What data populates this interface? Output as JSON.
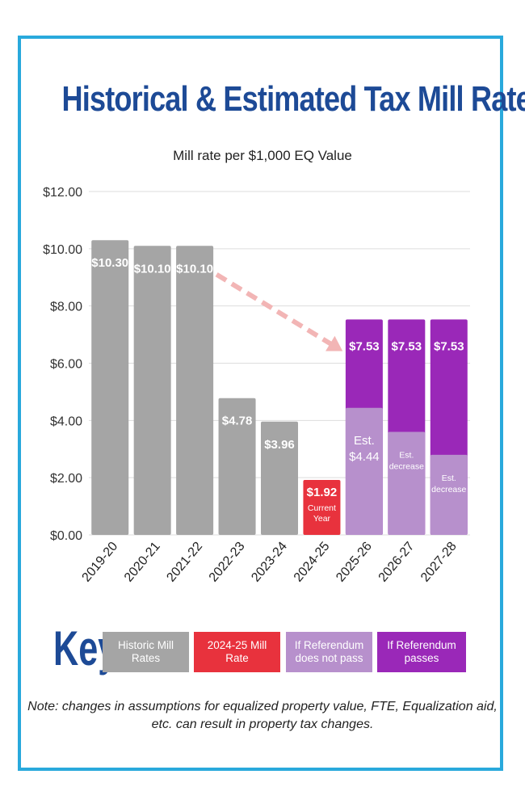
{
  "title": "Historical & Estimated Tax Mill Rate",
  "subtitle": "Mill rate per $1,000 EQ Value",
  "colors": {
    "historic": "#a5a5a5",
    "current": "#e8323d",
    "no_pass": "#b790cc",
    "passes": "#9a28b8",
    "frame": "#29a9dc",
    "title": "#1d4a96",
    "arrow": "#f2b5b5"
  },
  "chart_data": {
    "type": "bar",
    "title": "Historical & Estimated Tax Mill Rate",
    "ylabel": "Mill rate per $1,000 EQ Value",
    "xlabel": "",
    "ylim": [
      0,
      12
    ],
    "yticks": [
      {
        "value": 0,
        "label": "$0.00"
      },
      {
        "value": 2,
        "label": "$2.00"
      },
      {
        "value": 4,
        "label": "$4.00"
      },
      {
        "value": 6,
        "label": "$6.00"
      },
      {
        "value": 8,
        "label": "$8.00"
      },
      {
        "value": 10,
        "label": "$10.00"
      },
      {
        "value": 12,
        "label": "$12.00"
      }
    ],
    "categories": [
      "2019-20",
      "2020-21",
      "2021-22",
      "2022-23",
      "2023-24",
      "2024-25",
      "2025-26",
      "2026-27",
      "2027-28"
    ],
    "series": [
      {
        "name": "Historic Mill Rates",
        "values": [
          10.3,
          10.1,
          10.1,
          4.78,
          3.96,
          null,
          null,
          null,
          null
        ]
      },
      {
        "name": "2024-25 Mill Rate",
        "values": [
          null,
          null,
          null,
          null,
          null,
          1.92,
          null,
          null,
          null
        ]
      },
      {
        "name": "If Referendum does not pass",
        "values": [
          null,
          null,
          null,
          null,
          null,
          null,
          4.44,
          3.6,
          2.8
        ]
      },
      {
        "name": "If Referendum passes",
        "values": [
          null,
          null,
          null,
          null,
          null,
          null,
          7.53,
          7.53,
          7.53
        ]
      }
    ],
    "bar_labels": [
      {
        "top": "$10.30",
        "sub": ""
      },
      {
        "top": "$10.10",
        "sub": ""
      },
      {
        "top": "$10.10",
        "sub": ""
      },
      {
        "top": "$4.78",
        "sub": ""
      },
      {
        "top": "$3.96",
        "sub": ""
      },
      {
        "top": "$1.92",
        "sub": "Current Year"
      },
      {
        "top": "$7.53",
        "sub": "Est. $4.44"
      },
      {
        "top": "$7.53",
        "sub": "Est. decrease"
      },
      {
        "top": "$7.53",
        "sub": "Est. decrease"
      }
    ],
    "annotation": "arrow from 2021-22 toward 2025-26",
    "grid": true
  },
  "key": {
    "label": "Key",
    "items": [
      {
        "label": "Historic Mill Rates",
        "color": "#a5a5a5"
      },
      {
        "label": "2024-25 Mill Rate",
        "color": "#e8323d"
      },
      {
        "label": "If Referendum does not pass",
        "color": "#b790cc"
      },
      {
        "label": "If Referendum passes",
        "color": "#9a28b8"
      }
    ]
  },
  "note": "Note: changes in assumptions for equalized property value, FTE, Equalization aid, etc. can result in property tax changes."
}
